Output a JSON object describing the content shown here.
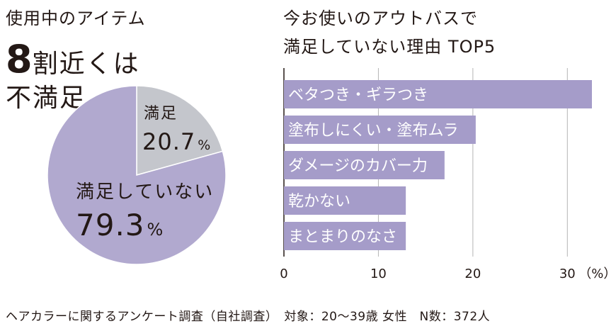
{
  "left": {
    "title": "使用中のアイテム",
    "headline_number": "8",
    "headline_rest": "割近くは",
    "headline_line2": "不満足"
  },
  "right": {
    "title_line1": "今お使いのアウトバスで",
    "title_line2": "満足していない理由 TOP5"
  },
  "footer": "ヘアカラーに関するアンケート調査（自社調査）　対象：20〜39歳 女性　N数：372人",
  "colors": {
    "satisfied": "#c4c6cc",
    "unsatisfied": "#b1a9cf",
    "bar": "#a59cc9",
    "grid": "#b5b5b5",
    "text": "#231815"
  },
  "chart_data": [
    {
      "type": "pie",
      "slices": [
        {
          "label": "満足",
          "value": 20.7,
          "value_text": "20.7",
          "unit": "%"
        },
        {
          "label": "満足していない",
          "value": 79.3,
          "value_text": "79.3",
          "unit": "%"
        }
      ]
    },
    {
      "type": "bar",
      "orientation": "horizontal",
      "categories": [
        "ベタつき・ギラつき",
        "塗布しにくい・塗布ムラ",
        "ダメージのカバー力",
        "乾かない",
        "まとまりのなさ"
      ],
      "values": [
        32.6,
        20.3,
        17.0,
        12.9,
        12.9
      ],
      "xlim": [
        0,
        33
      ],
      "xticks": [
        0,
        10,
        20,
        30
      ],
      "xunit": "（%）",
      "grid": true
    }
  ]
}
